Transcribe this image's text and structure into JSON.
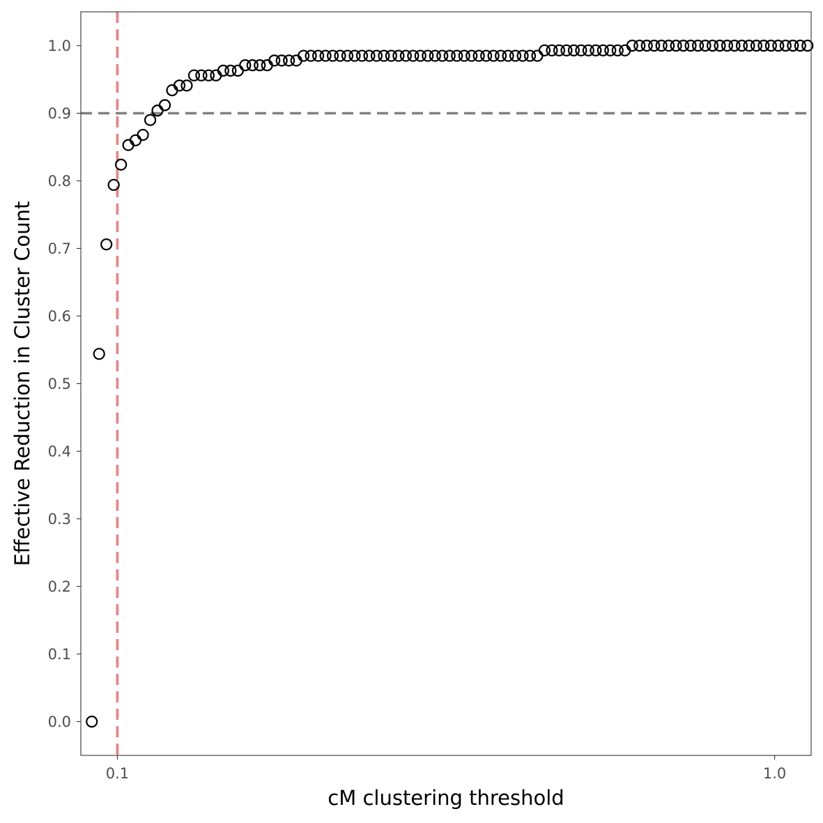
{
  "chart_data": {
    "type": "scatter",
    "xlabel": "cM clustering threshold",
    "ylabel": "Effective Reduction in Cluster Count",
    "x_scale": "linear",
    "xlim": [
      0.05,
      1.05
    ],
    "ylim": [
      -0.05,
      1.05
    ],
    "x_ticks": [
      {
        "value": 0.1,
        "label": "0.1"
      },
      {
        "value": 1.0,
        "label": "1.0"
      }
    ],
    "y_ticks": [
      {
        "value": 0.0,
        "label": "0.0"
      },
      {
        "value": 0.1,
        "label": "0.1"
      },
      {
        "value": 0.2,
        "label": "0.2"
      },
      {
        "value": 0.3,
        "label": "0.3"
      },
      {
        "value": 0.4,
        "label": "0.4"
      },
      {
        "value": 0.5,
        "label": "0.5"
      },
      {
        "value": 0.6,
        "label": "0.6"
      },
      {
        "value": 0.7,
        "label": "0.7"
      },
      {
        "value": 0.8,
        "label": "0.8"
      },
      {
        "value": 0.9,
        "label": "0.9"
      },
      {
        "value": 1.0,
        "label": "1.0"
      }
    ],
    "grid": false,
    "reference_lines": [
      {
        "orientation": "horizontal",
        "value": 0.9,
        "color": "#808080",
        "style": "dashed"
      },
      {
        "orientation": "vertical",
        "value": 0.1,
        "color": "#f08080",
        "style": "dashed"
      }
    ],
    "marker": {
      "shape": "open-circle",
      "color": "#000000"
    },
    "series": [
      {
        "x": [
          0.065,
          0.075,
          0.085,
          0.095,
          0.105,
          0.115,
          0.125,
          0.135,
          0.145,
          0.155,
          0.165,
          0.175,
          0.185,
          0.195,
          0.205,
          0.215,
          0.225,
          0.235,
          0.245,
          0.255,
          0.265,
          0.275,
          0.285,
          0.295,
          0.305,
          0.315,
          0.325,
          0.335,
          0.345,
          0.355,
          0.365,
          0.375,
          0.385,
          0.395,
          0.405,
          0.415,
          0.425,
          0.435,
          0.445,
          0.455,
          0.465,
          0.475,
          0.485,
          0.495,
          0.505,
          0.515,
          0.525,
          0.535,
          0.545,
          0.555,
          0.565,
          0.575,
          0.585,
          0.595,
          0.605,
          0.615,
          0.625,
          0.635,
          0.645,
          0.655,
          0.665,
          0.675,
          0.685,
          0.695,
          0.705,
          0.715,
          0.725,
          0.735,
          0.745,
          0.755,
          0.765,
          0.775,
          0.785,
          0.795,
          0.805,
          0.815,
          0.825,
          0.835,
          0.845,
          0.855,
          0.865,
          0.875,
          0.885,
          0.895,
          0.905,
          0.915,
          0.925,
          0.935,
          0.945,
          0.955,
          0.965,
          0.975,
          0.985,
          0.995,
          1.005,
          1.015,
          1.025,
          1.035,
          1.045,
          1.055
        ],
        "y": [
          0.0,
          0.544,
          0.706,
          0.794,
          0.824,
          0.853,
          0.86,
          0.868,
          0.89,
          0.904,
          0.912,
          0.934,
          0.941,
          0.941,
          0.956,
          0.956,
          0.956,
          0.956,
          0.963,
          0.963,
          0.963,
          0.971,
          0.971,
          0.971,
          0.971,
          0.978,
          0.978,
          0.978,
          0.978,
          0.985,
          0.985,
          0.985,
          0.985,
          0.985,
          0.985,
          0.985,
          0.985,
          0.985,
          0.985,
          0.985,
          0.985,
          0.985,
          0.985,
          0.985,
          0.985,
          0.985,
          0.985,
          0.985,
          0.985,
          0.985,
          0.985,
          0.985,
          0.985,
          0.985,
          0.985,
          0.985,
          0.985,
          0.985,
          0.985,
          0.985,
          0.985,
          0.985,
          0.993,
          0.993,
          0.993,
          0.993,
          0.993,
          0.993,
          0.993,
          0.993,
          0.993,
          0.993,
          0.993,
          0.993,
          1.0,
          1.0,
          1.0,
          1.0,
          1.0,
          1.0,
          1.0,
          1.0,
          1.0,
          1.0,
          1.0,
          1.0,
          1.0,
          1.0,
          1.0,
          1.0,
          1.0,
          1.0,
          1.0,
          1.0,
          1.0,
          1.0,
          1.0,
          1.0,
          1.0,
          1.0
        ]
      }
    ]
  }
}
